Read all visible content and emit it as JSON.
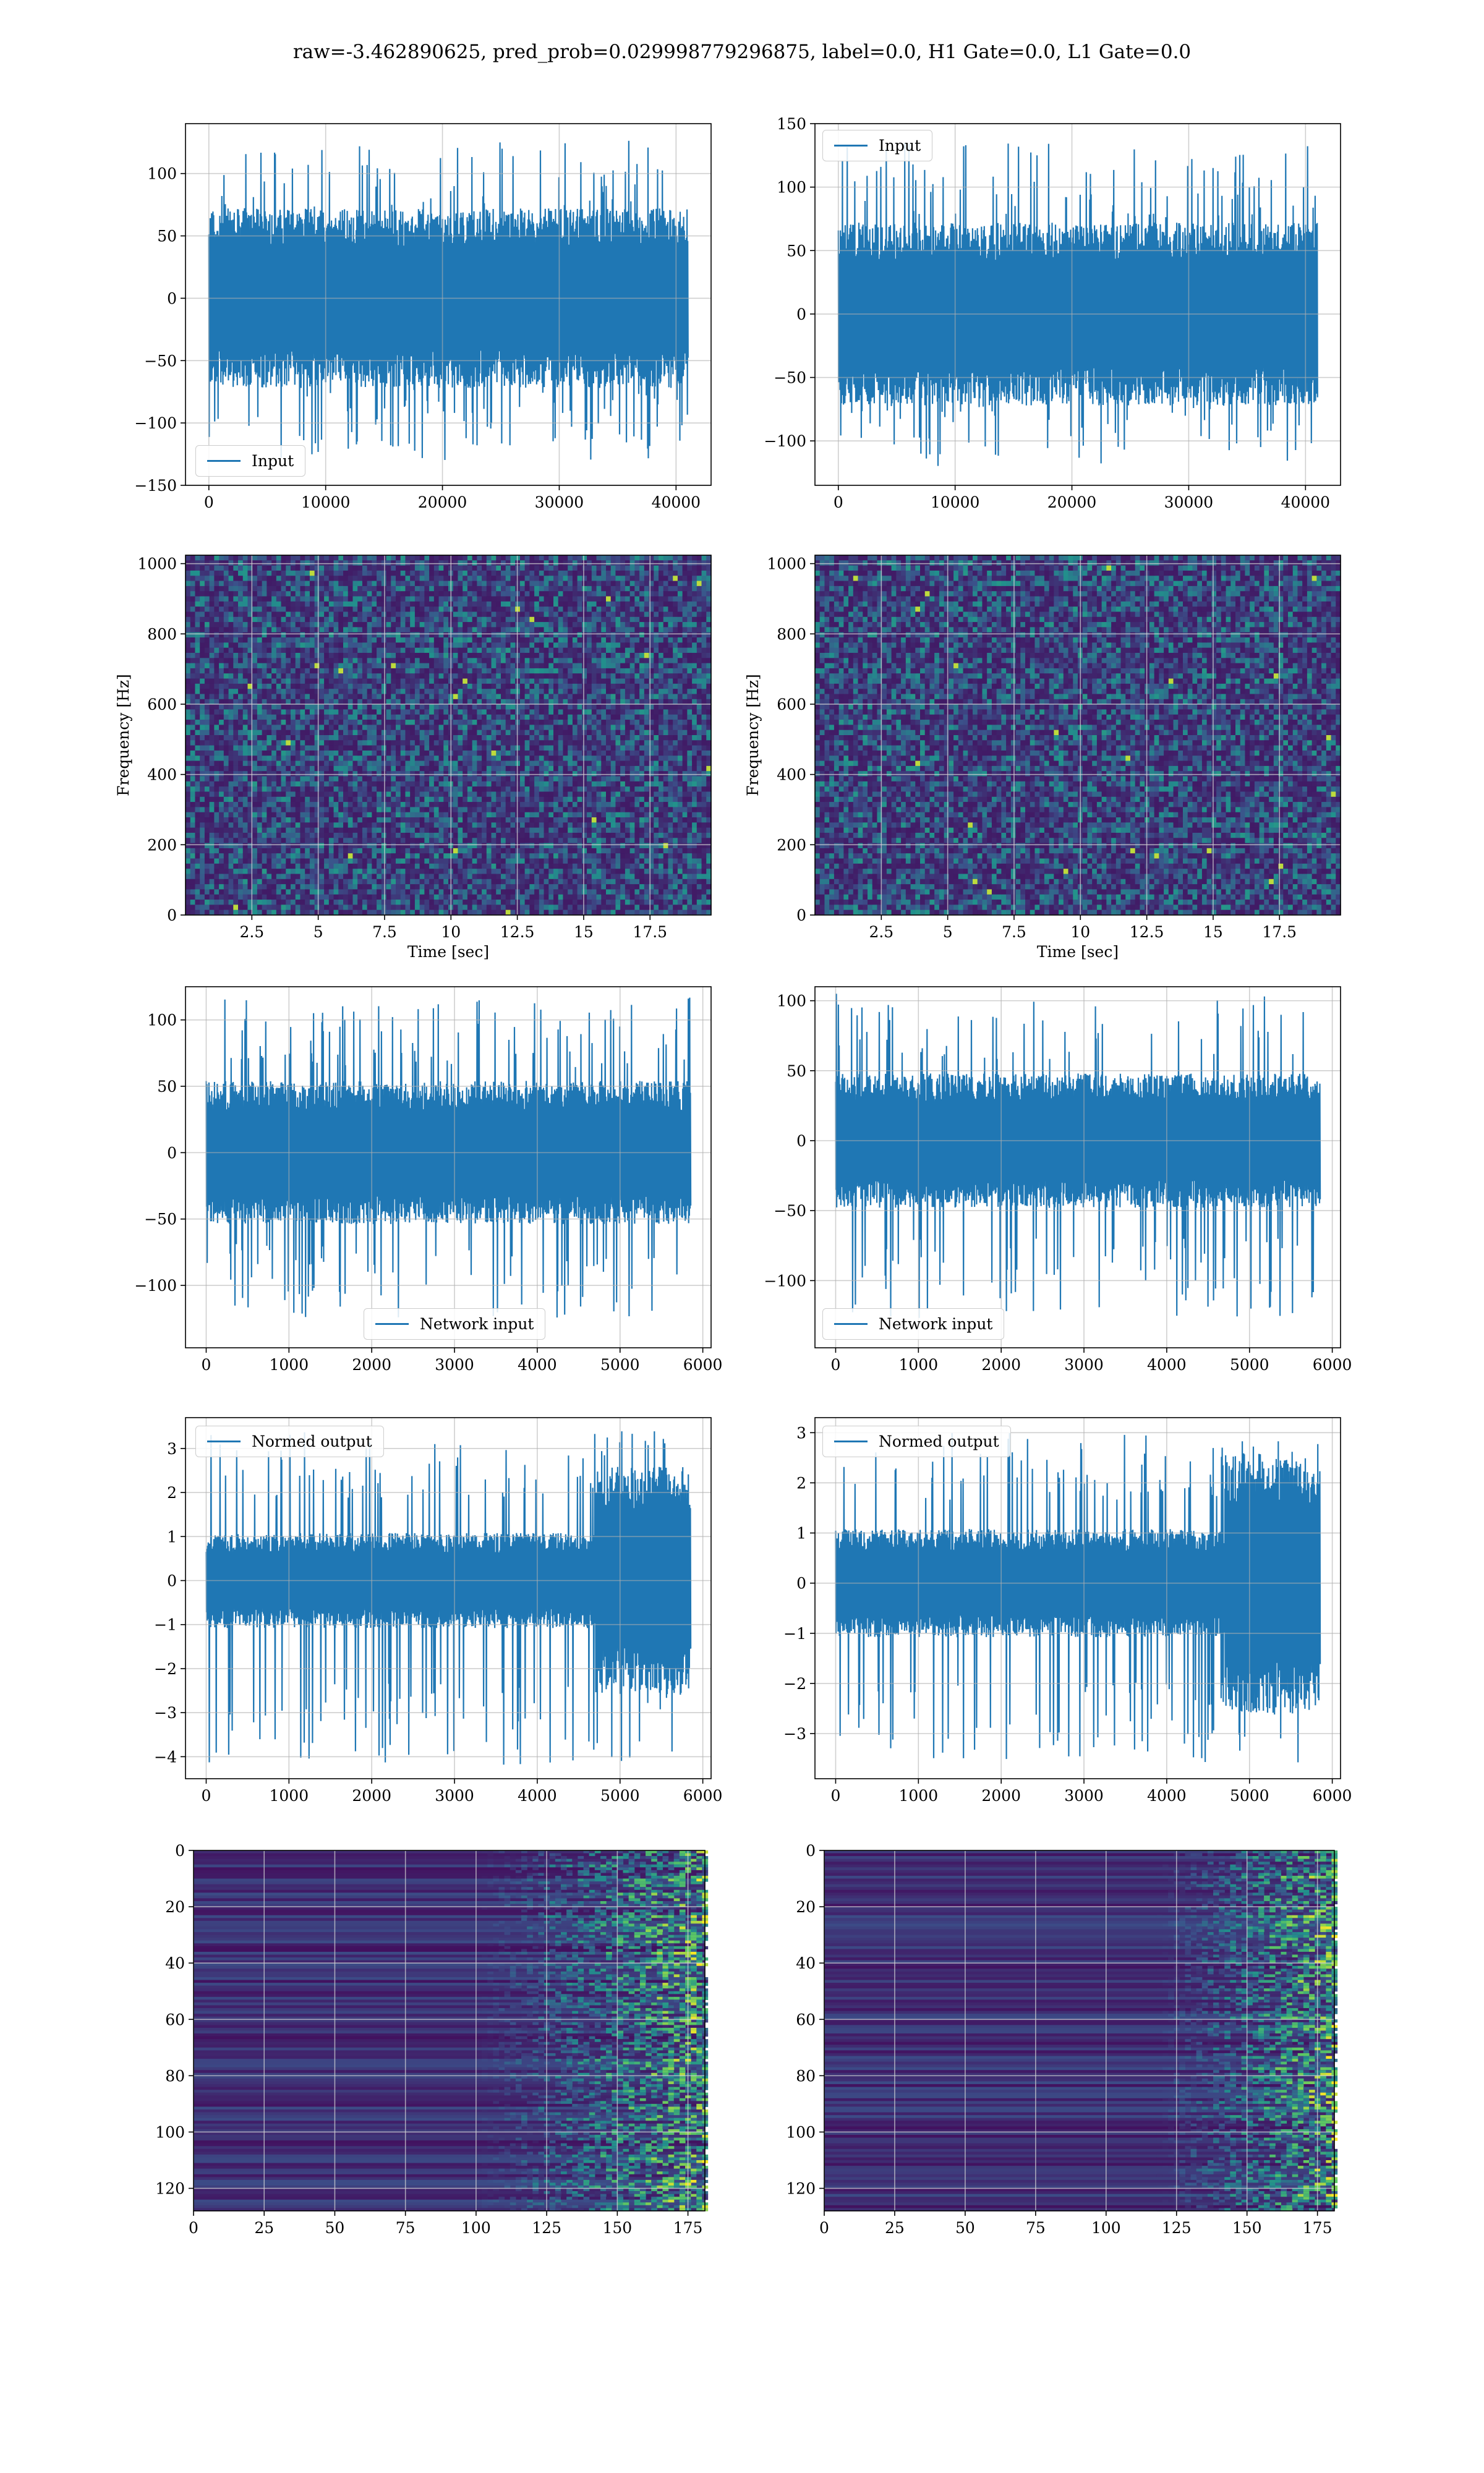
{
  "title": "raw=-3.462890625, pred_prob=0.029998779296875, label=0.0, H1 Gate=0.0, L1 Gate=0.0",
  "colors": {
    "line": "#1f77b4",
    "grid": "#b0b0b0",
    "viridis_dark": "#440154",
    "viridis_mid": "#21918c",
    "viridis_bright": "#fde725"
  },
  "chart_data": [
    {
      "id": "input-h1",
      "type": "line",
      "legend": "Input",
      "legend_loc": "lower-left",
      "x": [
        0,
        41000
      ],
      "envelope": {
        "typical": [
          -60,
          60
        ],
        "extreme": [
          -130,
          128
        ]
      },
      "xlim": [
        -2000,
        43000
      ],
      "ylim": [
        -150,
        140
      ],
      "xticks": [
        0,
        10000,
        20000,
        30000,
        40000
      ],
      "yticks": [
        -150,
        -100,
        -50,
        0,
        50,
        100
      ],
      "xlabel": "",
      "ylabel": "",
      "grid": true
    },
    {
      "id": "input-l1",
      "type": "line",
      "legend": "Input",
      "legend_loc": "upper-left",
      "x": [
        0,
        41000
      ],
      "envelope": {
        "typical": [
          -60,
          60
        ],
        "extreme": [
          -120,
          137
        ]
      },
      "xlim": [
        -2000,
        43000
      ],
      "ylim": [
        -135,
        150
      ],
      "xticks": [
        0,
        10000,
        20000,
        30000,
        40000
      ],
      "yticks": [
        -100,
        -50,
        0,
        50,
        100,
        150
      ],
      "xlabel": "",
      "ylabel": "",
      "grid": true
    },
    {
      "id": "spectrogram-h1",
      "type": "heatmap",
      "colormap": "viridis",
      "xlim": [
        0,
        19.8
      ],
      "ylim": [
        0,
        1024
      ],
      "xticks": [
        2.5,
        5.0,
        7.5,
        10.0,
        12.5,
        15.0,
        17.5
      ],
      "yticks": [
        0,
        200,
        400,
        600,
        800,
        1000
      ],
      "xlabel": "Time [sec]",
      "ylabel": "Frequency [Hz]",
      "grid": true
    },
    {
      "id": "spectrogram-l1",
      "type": "heatmap",
      "colormap": "viridis",
      "xlim": [
        0,
        19.8
      ],
      "ylim": [
        0,
        1024
      ],
      "xticks": [
        2.5,
        5.0,
        7.5,
        10.0,
        12.5,
        15.0,
        17.5
      ],
      "yticks": [
        0,
        200,
        400,
        600,
        800,
        1000
      ],
      "xlabel": "Time [sec]",
      "ylabel": "Frequency [Hz]",
      "grid": true
    },
    {
      "id": "network-input-h1",
      "type": "line",
      "legend": "Network input",
      "legend_loc": "lower-center",
      "x": [
        0,
        5850
      ],
      "envelope": {
        "typical": [
          -45,
          45
        ],
        "extreme": [
          -125,
          117
        ]
      },
      "xlim": [
        -250,
        6100
      ],
      "ylim": [
        -147,
        125
      ],
      "xticks": [
        0,
        1000,
        2000,
        3000,
        4000,
        5000,
        6000
      ],
      "yticks": [
        -100,
        -50,
        0,
        50,
        100
      ],
      "xlabel": "",
      "ylabel": "",
      "grid": true
    },
    {
      "id": "network-input-l1",
      "type": "line",
      "legend": "Network input",
      "legend_loc": "lower-left",
      "x": [
        0,
        5850
      ],
      "envelope": {
        "typical": [
          -40,
          40
        ],
        "extreme": [
          -127,
          105
        ]
      },
      "xlim": [
        -250,
        6100
      ],
      "ylim": [
        -148,
        110
      ],
      "xticks": [
        0,
        1000,
        2000,
        3000,
        4000,
        5000,
        6000
      ],
      "yticks": [
        -100,
        -50,
        0,
        50,
        100
      ],
      "xlabel": "",
      "ylabel": "",
      "grid": true
    },
    {
      "id": "normed-output-h1",
      "type": "line",
      "legend": "Normed output",
      "legend_loc": "upper-left",
      "x": [
        0,
        5850
      ],
      "envelope": {
        "typical": [
          -0.9,
          0.9
        ],
        "extreme": [
          -4.2,
          3.4
        ],
        "loud_region": [
          4700,
          5850
        ]
      },
      "xlim": [
        -250,
        6100
      ],
      "ylim": [
        -4.5,
        3.7
      ],
      "xticks": [
        0,
        1000,
        2000,
        3000,
        4000,
        5000,
        6000
      ],
      "yticks": [
        -4,
        -3,
        -2,
        -1,
        0,
        1,
        2,
        3
      ],
      "xlabel": "",
      "ylabel": "",
      "grid": true
    },
    {
      "id": "normed-output-l1",
      "type": "line",
      "legend": "Normed output",
      "legend_loc": "upper-left",
      "x": [
        0,
        5850
      ],
      "envelope": {
        "typical": [
          -0.9,
          0.9
        ],
        "extreme": [
          -3.6,
          3.0
        ],
        "loud_region": [
          4700,
          5850
        ]
      },
      "xlim": [
        -250,
        6100
      ],
      "ylim": [
        -3.9,
        3.3
      ],
      "xticks": [
        0,
        1000,
        2000,
        3000,
        4000,
        5000,
        6000
      ],
      "yticks": [
        -3,
        -2,
        -1,
        0,
        1,
        2,
        3
      ],
      "xlabel": "",
      "ylabel": "",
      "grid": true
    },
    {
      "id": "feature-map-h1",
      "type": "heatmap",
      "colormap": "viridis",
      "xlim": [
        0,
        181
      ],
      "ylim": [
        128,
        0
      ],
      "active_from": 100,
      "xticks": [
        0,
        25,
        50,
        75,
        100,
        125,
        150,
        175
      ],
      "yticks": [
        0,
        20,
        40,
        60,
        80,
        100,
        120
      ],
      "xlabel": "",
      "ylabel": "",
      "grid": true
    },
    {
      "id": "feature-map-l1",
      "type": "heatmap",
      "colormap": "viridis",
      "xlim": [
        0,
        181
      ],
      "ylim": [
        128,
        0
      ],
      "active_from": 118,
      "xticks": [
        0,
        25,
        50,
        75,
        100,
        125,
        150,
        175
      ],
      "yticks": [
        0,
        20,
        40,
        60,
        80,
        100,
        120
      ],
      "xlabel": "",
      "ylabel": "",
      "grid": true
    }
  ]
}
